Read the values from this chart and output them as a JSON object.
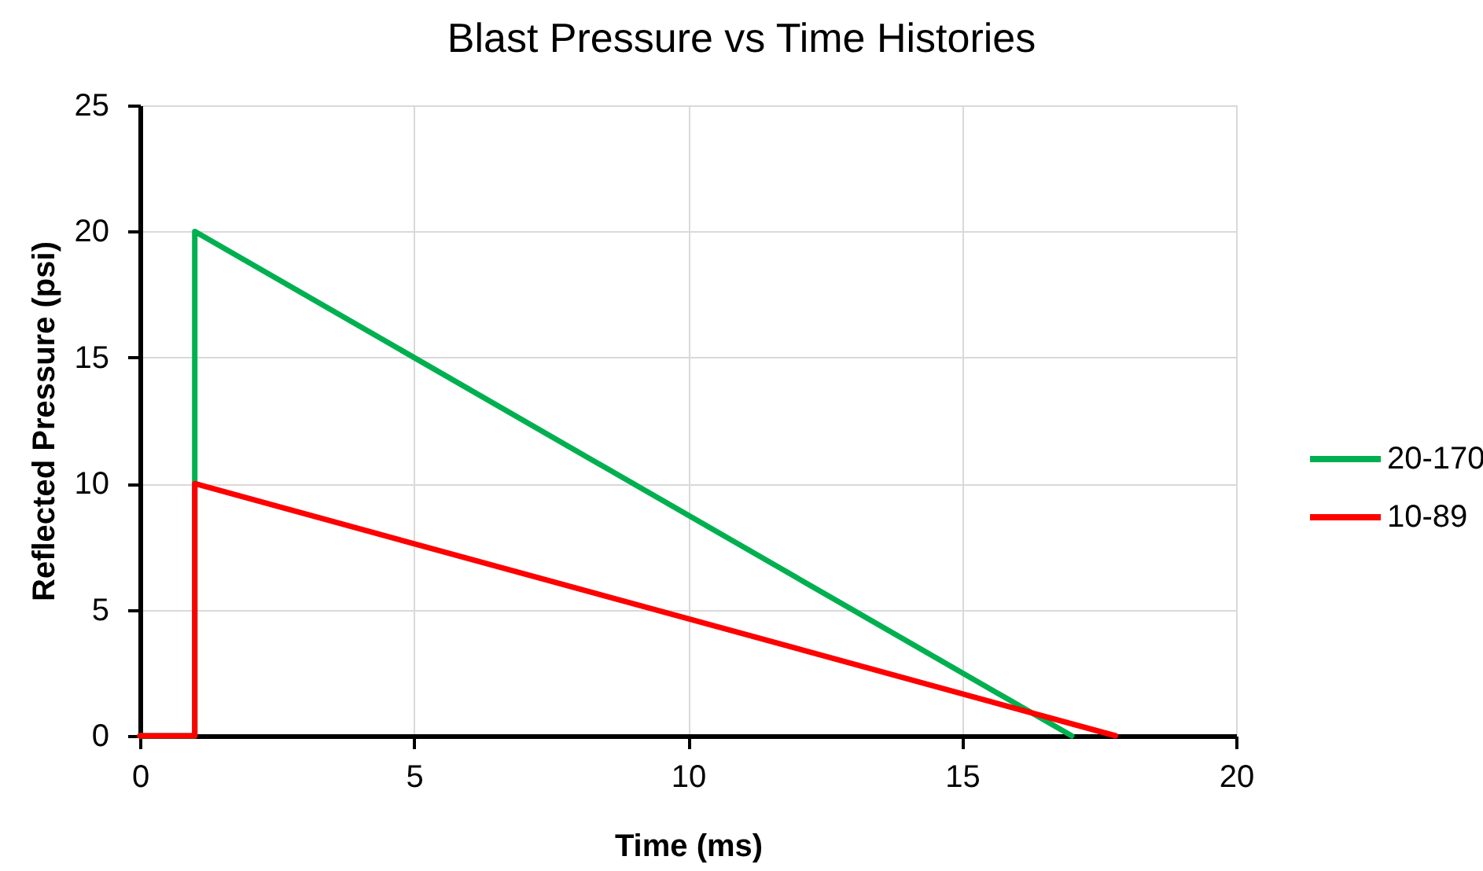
{
  "chart_data": {
    "type": "line",
    "title": "Blast Pressure vs Time Histories",
    "xlabel": "Time (ms)",
    "ylabel": "Reflected Pressure (psi)",
    "series": [
      {
        "name": "20-170",
        "color": "#00b050",
        "x": [
          0,
          1,
          1,
          17
        ],
        "values": [
          0,
          0,
          20,
          0
        ]
      },
      {
        "name": "10-89",
        "color": "#ff0000",
        "x": [
          0,
          1,
          1,
          17.8
        ],
        "values": [
          0,
          0,
          10,
          0
        ]
      }
    ],
    "xlim": [
      0,
      20
    ],
    "ylim": [
      0,
      25
    ],
    "xticks": [
      0,
      5,
      10,
      15,
      20
    ],
    "yticks": [
      0,
      5,
      10,
      15,
      20,
      25
    ],
    "grid": true,
    "legend": "right",
    "marker": "none",
    "line_style": "solid"
  }
}
